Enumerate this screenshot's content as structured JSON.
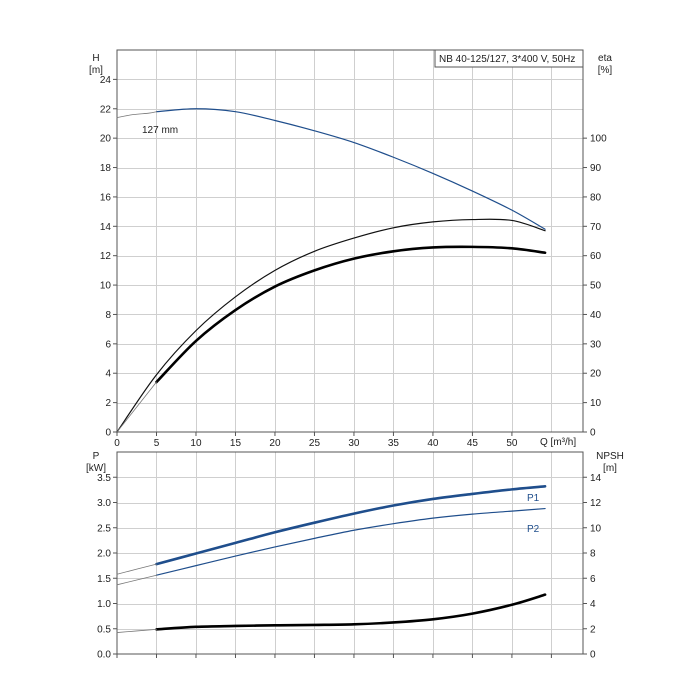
{
  "chart_data": [
    {
      "type": "line",
      "title": "NB 40-125/127, 3*400 V, 50Hz",
      "x_axis": {
        "label": "Q [m³/h]",
        "min": 0,
        "max": 59,
        "ticks": [
          0,
          5,
          10,
          15,
          20,
          25,
          30,
          35,
          40,
          45,
          50
        ]
      },
      "y_left": {
        "label": "H",
        "unit": "[m]",
        "min": 0,
        "max": 26,
        "ticks": [
          0,
          2,
          4,
          6,
          8,
          10,
          12,
          14,
          16,
          18,
          20,
          22,
          24
        ]
      },
      "y_right": {
        "label": "eta",
        "unit": "[%]",
        "min": 0,
        "max": 130,
        "ticks": [
          0,
          10,
          20,
          30,
          40,
          50,
          60,
          70,
          80,
          90,
          100
        ]
      },
      "grid": true,
      "annotations": [
        {
          "text": "127 mm"
        }
      ],
      "series": [
        {
          "id": "head",
          "axis": "left",
          "color": "#1f4e8c",
          "x": [
            5,
            10,
            15,
            20,
            25,
            30,
            35,
            40,
            45,
            50,
            54.2
          ],
          "y": [
            21.8,
            22.0,
            21.8,
            21.2,
            20.5,
            19.7,
            18.7,
            17.6,
            16.4,
            15.1,
            13.8
          ]
        },
        {
          "id": "head-extension",
          "axis": "left",
          "color": "#777777",
          "thin": true,
          "x": [
            0,
            2,
            4,
            5
          ],
          "y": [
            21.4,
            21.6,
            21.7,
            21.8
          ]
        },
        {
          "id": "eta-thin",
          "axis": "right",
          "color": "#111111",
          "x": [
            0,
            5,
            10,
            15,
            20,
            25,
            30,
            35,
            40,
            45,
            50,
            54.2
          ],
          "y": [
            0,
            19.5,
            34.5,
            46,
            55,
            61.5,
            66,
            69.5,
            71.5,
            72.3,
            72.0,
            68.5
          ]
        },
        {
          "id": "eta-bold",
          "axis": "right",
          "color": "#000000",
          "bold": true,
          "x": [
            5,
            10,
            15,
            20,
            25,
            30,
            35,
            40,
            45,
            50,
            54.2
          ],
          "y": [
            17,
            31,
            41.5,
            49.5,
            55,
            59,
            61.5,
            62.8,
            63.0,
            62.5,
            61.0
          ]
        },
        {
          "id": "eta-extension",
          "axis": "right",
          "color": "#777777",
          "thin": true,
          "x": [
            0,
            5
          ],
          "y": [
            0,
            17
          ]
        }
      ]
    },
    {
      "type": "line",
      "x_axis": {
        "min": 0,
        "max": 59
      },
      "y_left": {
        "label": "P",
        "unit": "[kW]",
        "min": 0,
        "max": 4.0,
        "ticks": [
          "0.0",
          "0.5",
          "1.0",
          "1.5",
          "2.0",
          "2.5",
          "3.0",
          "3.5"
        ]
      },
      "y_right": {
        "label": "NPSH",
        "unit": "[m]",
        "min": 0,
        "max": 16,
        "ticks": [
          0,
          2,
          4,
          6,
          8,
          10,
          12,
          14
        ]
      },
      "grid": true,
      "series": [
        {
          "id": "P1",
          "name": "P1",
          "axis": "left",
          "color": "#1f4e8c",
          "bold": true,
          "x": [
            5,
            10,
            15,
            20,
            25,
            30,
            35,
            40,
            45,
            50,
            54.2
          ],
          "y": [
            1.78,
            1.99,
            2.2,
            2.41,
            2.6,
            2.78,
            2.94,
            3.07,
            3.17,
            3.26,
            3.32
          ]
        },
        {
          "id": "P1-ext",
          "axis": "left",
          "color": "#777777",
          "thin": true,
          "x": [
            0,
            5
          ],
          "y": [
            1.58,
            1.78
          ]
        },
        {
          "id": "P2",
          "name": "P2",
          "axis": "left",
          "color": "#1f4e8c",
          "x": [
            5,
            10,
            15,
            20,
            25,
            30,
            35,
            40,
            45,
            50,
            54.2
          ],
          "y": [
            1.56,
            1.75,
            1.94,
            2.12,
            2.29,
            2.45,
            2.58,
            2.69,
            2.77,
            2.83,
            2.88
          ]
        },
        {
          "id": "P2-ext",
          "axis": "left",
          "color": "#777777",
          "thin": true,
          "x": [
            0,
            5
          ],
          "y": [
            1.37,
            1.56
          ]
        },
        {
          "id": "NPSH",
          "axis": "right",
          "color": "#000000",
          "bold": true,
          "x": [
            5,
            10,
            15,
            20,
            25,
            30,
            35,
            40,
            45,
            50,
            54.2
          ],
          "y": [
            1.95,
            2.15,
            2.22,
            2.27,
            2.3,
            2.35,
            2.5,
            2.75,
            3.2,
            3.9,
            4.7
          ]
        },
        {
          "id": "NPSH-ext",
          "axis": "right",
          "color": "#777777",
          "thin": true,
          "x": [
            0,
            5
          ],
          "y": [
            1.7,
            1.95
          ]
        }
      ]
    }
  ]
}
